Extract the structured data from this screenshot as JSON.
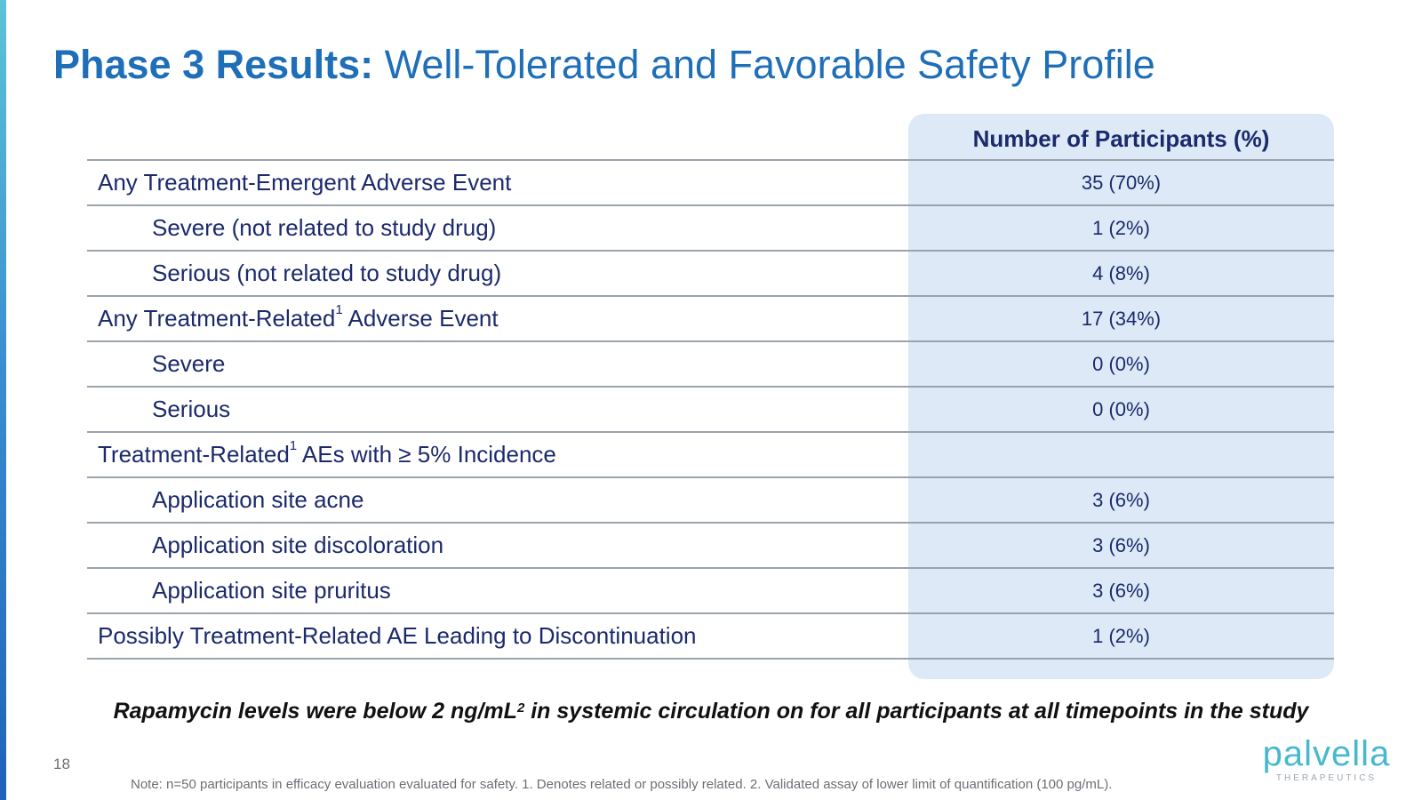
{
  "title": {
    "bold": "Phase 3 Results:",
    "rest": " Well-Tolerated and Favorable Safety Profile"
  },
  "table": {
    "column_header": "Number of Participants (%)",
    "rows": [
      {
        "label": "Any Treatment-Emergent Adverse Event",
        "value": "35 (70%)"
      },
      {
        "label": "Severe (not related to study drug)",
        "value": "1 (2%)"
      },
      {
        "label": "Serious (not related to study drug)",
        "value": "4 (8%)"
      },
      {
        "label_pre": "Any Treatment-Related",
        "label_sup": "1",
        "label_post": " Adverse Event",
        "value": "17 (34%)"
      },
      {
        "label": "Severe",
        "value": "0 (0%)"
      },
      {
        "label": "Serious",
        "value": "0 (0%)"
      },
      {
        "label_pre": "Treatment-Related",
        "label_sup": "1",
        "label_post": " AEs with ≥ 5% Incidence",
        "value": ""
      },
      {
        "label": "Application site acne",
        "value": "3 (6%)"
      },
      {
        "label": "Application site discoloration",
        "value": "3 (6%)"
      },
      {
        "label": "Application site pruritus",
        "value": "3 (6%)"
      },
      {
        "label": "Possibly Treatment-Related AE Leading to Discontinuation",
        "value": "1 (2%)"
      }
    ]
  },
  "footnote": {
    "pre": "Rapamycin levels were below 2 ng/mL",
    "sup": "2",
    "post": " in systemic circulation on for all participants at all timepoints in the study"
  },
  "page_number": "18",
  "note": "Note: n=50 participants in efficacy evaluation evaluated for safety. 1. Denotes related or possibly related. 2. Validated assay of lower limit of quantification (100 pg/mL).",
  "logo": {
    "word": "palvella",
    "sub": "THERAPEUTICS"
  },
  "colors": {
    "title": "#1f6fb8",
    "text": "#1b2a6b",
    "column_highlight": "#dde9f6",
    "logo": "#46b9cf"
  }
}
